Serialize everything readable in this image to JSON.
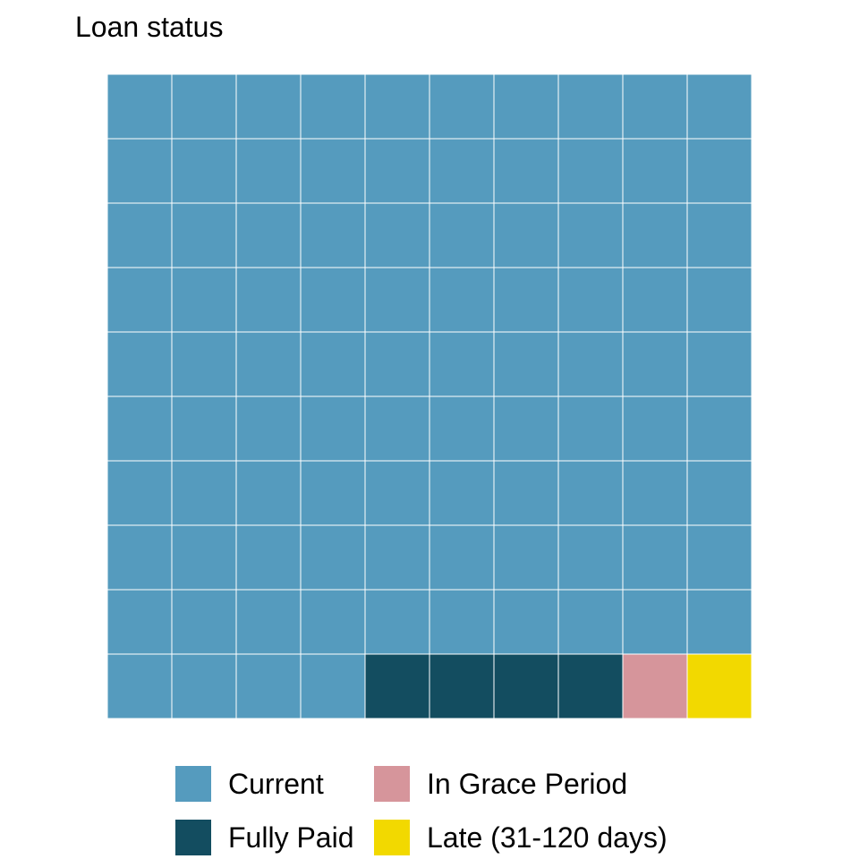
{
  "chart_data": {
    "type": "waffle",
    "title": "Loan status",
    "grid": {
      "rows": 10,
      "cols": 10,
      "fill_order": "row-major from top-left"
    },
    "categories": [
      "Current",
      "Fully Paid",
      "In Grace Period",
      "Late (31-120 days)"
    ],
    "values": [
      94,
      4,
      1,
      1
    ],
    "colors": {
      "Current": "#559bbe",
      "Fully Paid": "#134d60",
      "In Grace Period": "#d6959b",
      "Late (31-120 days)": "#f2d900"
    },
    "legend": {
      "position": "bottom",
      "items": [
        {
          "label": "Current",
          "color": "#559bbe"
        },
        {
          "label": "In Grace Period",
          "color": "#d6959b"
        },
        {
          "label": "Fully Paid",
          "color": "#134d60"
        },
        {
          "label": "Late (31-120 days)",
          "color": "#f2d900"
        }
      ]
    },
    "cell_order_first_row": [
      "Current",
      "Current",
      "Current",
      "Current",
      "Fully Paid",
      "Fully Paid",
      "Fully Paid",
      "Fully Paid",
      "In Grace Period",
      "Late (31-120 days)"
    ],
    "xlabel": "",
    "ylabel": ""
  }
}
